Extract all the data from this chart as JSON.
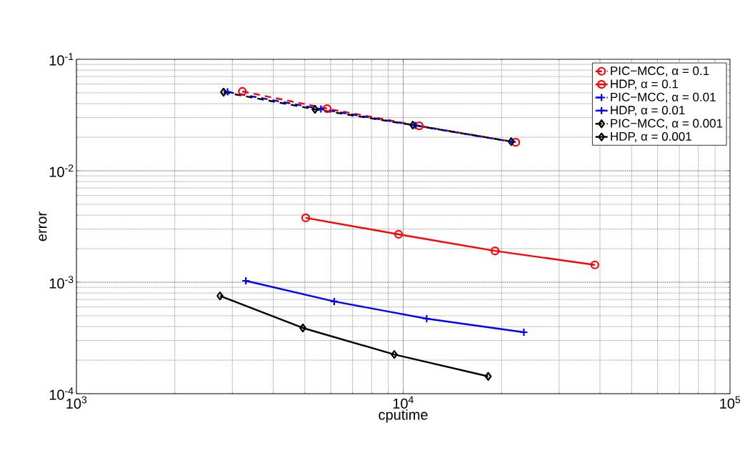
{
  "chart_data": {
    "type": "line",
    "xlabel": "cputime",
    "ylabel": "error",
    "log": "xy",
    "grid": true,
    "legend": "top right",
    "xlim": [
      1000,
      100000
    ],
    "ylim": [
      0.0001,
      0.1
    ],
    "xticks": [
      {
        "value": 1000,
        "label": "10$^{3}$"
      },
      {
        "value": 10000,
        "label": "10$^{4}$"
      },
      {
        "value": 100000,
        "label": "10$^{5}$"
      }
    ],
    "yticks": [
      {
        "value": 0.0001,
        "label": "10$^{-4}$"
      },
      {
        "value": 0.001,
        "label": "10$^{-3}$"
      },
      {
        "value": 0.01,
        "label": "10$^{-2}$"
      },
      {
        "value": 0.1,
        "label": "10$^{-1}$"
      }
    ],
    "series": [
      {
        "name": "PIC−MCC, α = 0.1",
        "color": "#ff0000",
        "marker": "circle",
        "line_style": "dashed",
        "x": [
          3220,
          5850,
          11200,
          22100
        ],
        "values": [
          0.0515,
          0.0361,
          0.0253,
          0.018
        ]
      },
      {
        "name": "HDP, α = 0.1",
        "color": "#ff0000",
        "marker": "circle",
        "line_style": "solid",
        "x": [
          5030,
          9680,
          19100,
          38600
        ],
        "values": [
          0.00378,
          0.00269,
          0.00191,
          0.00143
        ]
      },
      {
        "name": "PIC−MCC, α = 0.01",
        "color": "#0000ff",
        "marker": "cross",
        "line_style": "dashed",
        "x": [
          2900,
          5600,
          10900,
          21500
        ],
        "values": [
          0.051,
          0.0358,
          0.0255,
          0.0182
        ]
      },
      {
        "name": "HDP, α = 0.01",
        "color": "#0000ff",
        "marker": "cross",
        "line_style": "solid",
        "x": [
          3300,
          6150,
          11800,
          23400
        ],
        "values": [
          0.00103,
          0.000672,
          0.000471,
          0.000356
        ]
      },
      {
        "name": "PIC−MCC, α = 0.001",
        "color": "#000000",
        "marker": "diamond",
        "line_style": "dashed",
        "x": [
          2820,
          5370,
          10700,
          21400
        ],
        "values": [
          0.0507,
          0.0356,
          0.0257,
          0.0183
        ]
      },
      {
        "name": "HDP, α = 0.001",
        "color": "#000000",
        "marker": "diamond",
        "line_style": "solid",
        "x": [
          2750,
          4930,
          9390,
          18200
        ],
        "values": [
          0.000755,
          0.000389,
          0.000225,
          0.000143
        ]
      }
    ]
  }
}
